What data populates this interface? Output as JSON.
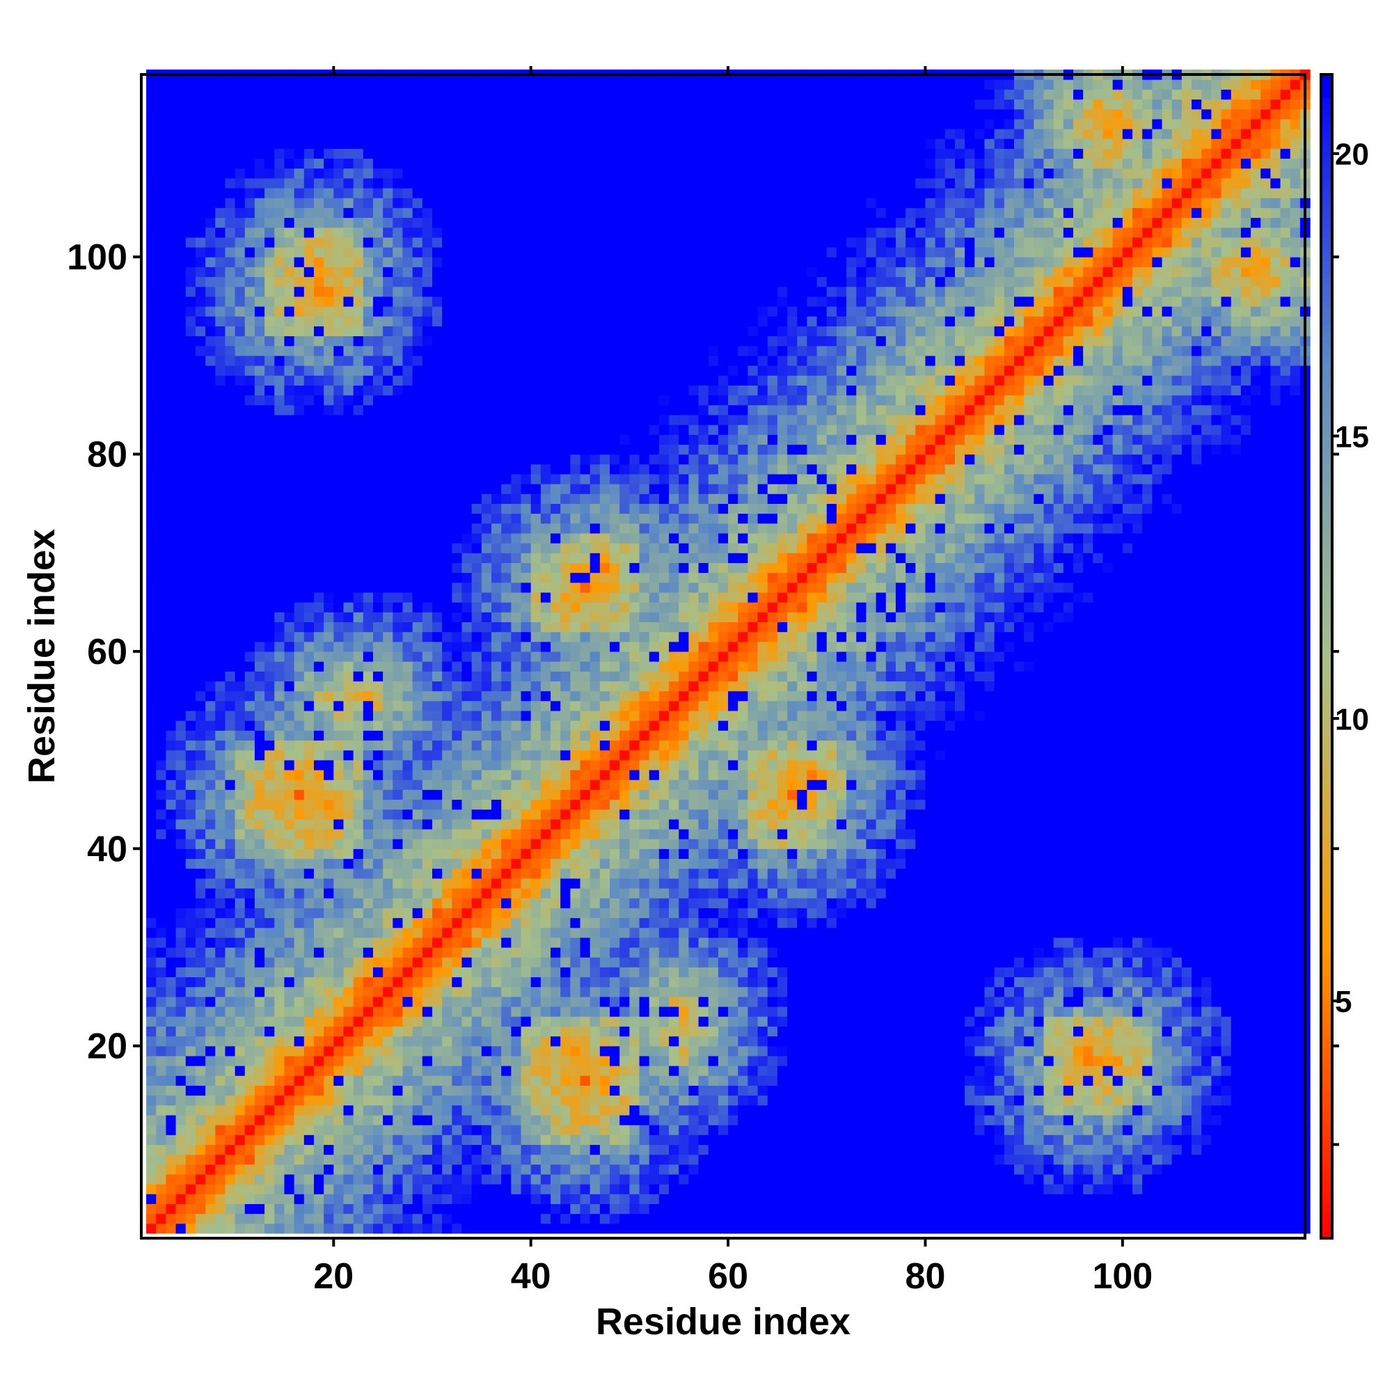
{
  "chart_data": {
    "type": "heatmap",
    "title": "",
    "xlabel": "Residue index",
    "ylabel": "Residue index",
    "n_residues": 118,
    "xlim": [
      1,
      118
    ],
    "ylim": [
      1,
      118
    ],
    "x_ticks": [
      20,
      40,
      60,
      80,
      100
    ],
    "y_ticks": [
      20,
      40,
      60,
      80,
      100
    ],
    "colorbar": {
      "ticks": [
        5,
        10,
        15,
        20
      ],
      "range": [
        0.8,
        21.4
      ],
      "colors": [
        "#ff0000",
        "#ff9900",
        "#a6bf8a",
        "#5c8ac4",
        "#0000ff"
      ]
    },
    "matrix_description": "Symmetric residue-residue distance map; near-zero (red) along the main diagonal, >20 (blue) saturated far from contacts",
    "contact_blocks": [
      {
        "x": [
          14,
          22
        ],
        "y": [
          92,
          102
        ],
        "v": 6
      },
      {
        "x": [
          10,
          22
        ],
        "y": [
          40,
          50
        ],
        "v": 6
      },
      {
        "x": [
          18,
          24
        ],
        "y": [
          53,
          56
        ],
        "v": 7
      },
      {
        "x": [
          40,
          50
        ],
        "y": [
          62,
          70
        ],
        "v": 6
      },
      {
        "x": [
          39,
          49
        ],
        "y": [
          12,
          22
        ],
        "v": 6
      },
      {
        "x": [
          53,
          57
        ],
        "y": [
          20,
          25
        ],
        "v": 7
      },
      {
        "x": [
          63,
          71
        ],
        "y": [
          43,
          50
        ],
        "v": 6
      },
      {
        "x": [
          92,
          101
        ],
        "y": [
          13,
          22
        ],
        "v": 6
      },
      {
        "x": [
          95,
          98
        ],
        "y": [
          110,
          118
        ],
        "v": 7
      },
      {
        "x": [
          108,
          118
        ],
        "y": [
          95,
          102
        ],
        "v": 7
      },
      {
        "x": [
          104,
          118
        ],
        "y": [
          105,
          118
        ],
        "v": 7
      }
    ]
  }
}
